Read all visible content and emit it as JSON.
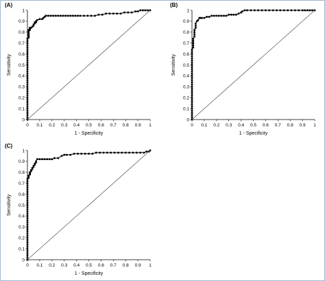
{
  "chart_data": [
    {
      "panel_label": "(A)",
      "type": "line",
      "xlabel": "1 - Specificity",
      "ylabel": "Sensitivity",
      "xlim": [
        0,
        1
      ],
      "ylim": [
        0,
        1
      ],
      "x_ticks": [
        "0",
        "0.1",
        "0.2",
        "0.3",
        "0.4",
        "0.5",
        "0.6",
        "0.7",
        "0.8",
        "0.9",
        "1"
      ],
      "y_ticks": [
        "0",
        "0.1",
        "0.2",
        "0.3",
        "0.4",
        "0.5",
        "0.6",
        "0.7",
        "0.8",
        "0.9",
        "1"
      ],
      "series": [
        {
          "style": "roc-markers",
          "x": [
            0,
            0,
            0,
            0,
            0,
            0,
            0,
            0,
            0,
            0,
            0,
            0,
            0,
            0,
            0,
            0,
            0,
            0,
            0,
            0,
            0,
            0,
            0,
            0,
            0,
            0,
            0,
            0,
            0,
            0,
            0,
            0,
            0,
            0,
            0,
            0,
            0,
            0,
            0.01,
            0.01,
            0.01,
            0.01,
            0.01,
            0.01,
            0.01,
            0.01,
            0.02,
            0.02,
            0.02,
            0.03,
            0.04,
            0.05,
            0.05,
            0.06,
            0.06,
            0.07,
            0.07,
            0.08,
            0.1,
            0.12,
            0.13,
            0.14,
            0.15,
            0.15,
            0.17,
            0.19,
            0.21,
            0.23,
            0.25,
            0.27,
            0.29,
            0.31,
            0.33,
            0.35,
            0.37,
            0.39,
            0.41,
            0.43,
            0.46,
            0.49,
            0.52,
            0.55,
            0.58,
            0.61,
            0.64,
            0.67,
            0.7,
            0.73,
            0.76,
            0.79,
            0.82,
            0.85,
            0.88,
            0.9,
            0.92,
            0.94,
            0.96,
            0.98,
            1
          ],
          "y": [
            0,
            0.02,
            0.04,
            0.06,
            0.08,
            0.1,
            0.12,
            0.14,
            0.16,
            0.18,
            0.2,
            0.22,
            0.24,
            0.26,
            0.28,
            0.3,
            0.32,
            0.34,
            0.36,
            0.38,
            0.4,
            0.42,
            0.44,
            0.46,
            0.48,
            0.5,
            0.52,
            0.54,
            0.56,
            0.58,
            0.6,
            0.62,
            0.64,
            0.66,
            0.68,
            0.7,
            0.72,
            0.74,
            0.75,
            0.76,
            0.77,
            0.78,
            0.79,
            0.8,
            0.81,
            0.82,
            0.82,
            0.83,
            0.84,
            0.84,
            0.85,
            0.86,
            0.87,
            0.88,
            0.89,
            0.89,
            0.9,
            0.91,
            0.92,
            0.92,
            0.93,
            0.94,
            0.95,
            0.95,
            0.95,
            0.95,
            0.95,
            0.95,
            0.95,
            0.95,
            0.95,
            0.95,
            0.95,
            0.95,
            0.95,
            0.95,
            0.95,
            0.95,
            0.95,
            0.95,
            0.95,
            0.95,
            0.96,
            0.96,
            0.97,
            0.97,
            0.97,
            0.97,
            0.97,
            0.98,
            0.98,
            0.98,
            0.99,
            0.99,
            1,
            1,
            1,
            1,
            1
          ]
        },
        {
          "style": "reference-diagonal",
          "x": [
            0,
            1
          ],
          "y": [
            0,
            1
          ]
        }
      ]
    },
    {
      "panel_label": "(B)",
      "type": "line",
      "xlabel": "1 - Specificity",
      "ylabel": "Sensitivity",
      "xlim": [
        0,
        1
      ],
      "ylim": [
        0,
        1
      ],
      "x_ticks": [
        "0",
        "0.1",
        "0.2",
        "0.3",
        "0.4",
        "0.5",
        "0.6",
        "0.7",
        "0.8",
        "0.9",
        "1"
      ],
      "y_ticks": [
        "0",
        "0.1",
        "0.2",
        "0.3",
        "0.4",
        "0.5",
        "0.6",
        "0.7",
        "0.8",
        "0.9",
        "1"
      ],
      "series": [
        {
          "style": "roc-markers",
          "x": [
            0,
            0,
            0,
            0,
            0,
            0,
            0,
            0,
            0,
            0,
            0,
            0,
            0,
            0,
            0,
            0,
            0,
            0,
            0,
            0,
            0,
            0,
            0,
            0,
            0,
            0,
            0,
            0,
            0,
            0,
            0,
            0,
            0,
            0.01,
            0.01,
            0.01,
            0.01,
            0.01,
            0.02,
            0.02,
            0.02,
            0.02,
            0.03,
            0.03,
            0.03,
            0.04,
            0.05,
            0.06,
            0.07,
            0.08,
            0.1,
            0.12,
            0.14,
            0.16,
            0.18,
            0.2,
            0.22,
            0.24,
            0.26,
            0.28,
            0.3,
            0.32,
            0.34,
            0.36,
            0.38,
            0.4,
            0.41,
            0.43,
            0.45,
            0.48,
            0.51,
            0.54,
            0.57,
            0.6,
            0.63,
            0.66,
            0.69,
            0.72,
            0.75,
            0.78,
            0.81,
            0.84,
            0.87,
            0.9,
            0.92,
            0.94,
            0.96,
            0.98,
            1
          ],
          "y": [
            0,
            0.02,
            0.04,
            0.06,
            0.08,
            0.1,
            0.12,
            0.14,
            0.16,
            0.18,
            0.2,
            0.22,
            0.24,
            0.26,
            0.28,
            0.3,
            0.32,
            0.34,
            0.36,
            0.38,
            0.4,
            0.42,
            0.44,
            0.46,
            0.48,
            0.5,
            0.52,
            0.54,
            0.56,
            0.58,
            0.6,
            0.62,
            0.64,
            0.66,
            0.68,
            0.7,
            0.72,
            0.74,
            0.76,
            0.78,
            0.8,
            0.82,
            0.84,
            0.86,
            0.88,
            0.9,
            0.91,
            0.93,
            0.93,
            0.93,
            0.93,
            0.94,
            0.94,
            0.95,
            0.95,
            0.95,
            0.95,
            0.95,
            0.95,
            0.95,
            0.96,
            0.96,
            0.96,
            0.96,
            0.97,
            0.98,
            0.99,
            1,
            1,
            1,
            1,
            1,
            1,
            1,
            1,
            1,
            1,
            1,
            1,
            1,
            1,
            1,
            1,
            1,
            1,
            1,
            1,
            1,
            1
          ]
        },
        {
          "style": "reference-diagonal",
          "x": [
            0,
            1
          ],
          "y": [
            0,
            1
          ]
        }
      ]
    },
    {
      "panel_label": "(C)",
      "type": "line",
      "xlabel": "1 - Specificity",
      "ylabel": "Sensitivity",
      "xlim": [
        0,
        1
      ],
      "ylim": [
        0,
        1
      ],
      "x_ticks": [
        "0",
        "0.1",
        "0.2",
        "0.3",
        "0.4",
        "0.5",
        "0.6",
        "0.7",
        "0.8",
        "0.9",
        "1"
      ],
      "y_ticks": [
        "0",
        "0.1",
        "0.2",
        "0.3",
        "0.4",
        "0.5",
        "0.6",
        "0.7",
        "0.8",
        "0.9",
        "1"
      ],
      "series": [
        {
          "style": "roc-markers",
          "x": [
            0,
            0,
            0,
            0,
            0,
            0,
            0,
            0,
            0,
            0,
            0,
            0,
            0,
            0,
            0,
            0,
            0,
            0,
            0,
            0,
            0,
            0,
            0,
            0,
            0,
            0,
            0,
            0,
            0,
            0,
            0,
            0,
            0,
            0,
            0,
            0,
            0,
            0,
            0.01,
            0.01,
            0.01,
            0.02,
            0.02,
            0.02,
            0.03,
            0.03,
            0.04,
            0.04,
            0.05,
            0.05,
            0.06,
            0.06,
            0.07,
            0.07,
            0.08,
            0.1,
            0.12,
            0.14,
            0.16,
            0.18,
            0.2,
            0.22,
            0.25,
            0.28,
            0.3,
            0.32,
            0.35,
            0.38,
            0.41,
            0.44,
            0.47,
            0.5,
            0.53,
            0.56,
            0.59,
            0.62,
            0.65,
            0.68,
            0.71,
            0.74,
            0.77,
            0.8,
            0.83,
            0.86,
            0.89,
            0.92,
            0.95,
            0.97,
            0.99,
            1
          ],
          "y": [
            0,
            0.02,
            0.04,
            0.06,
            0.08,
            0.1,
            0.12,
            0.14,
            0.16,
            0.18,
            0.2,
            0.22,
            0.24,
            0.26,
            0.28,
            0.3,
            0.32,
            0.34,
            0.36,
            0.38,
            0.4,
            0.42,
            0.44,
            0.46,
            0.48,
            0.5,
            0.52,
            0.54,
            0.56,
            0.58,
            0.6,
            0.62,
            0.64,
            0.66,
            0.68,
            0.7,
            0.72,
            0.74,
            0.75,
            0.76,
            0.77,
            0.78,
            0.79,
            0.8,
            0.81,
            0.82,
            0.83,
            0.84,
            0.85,
            0.86,
            0.87,
            0.88,
            0.89,
            0.9,
            0.92,
            0.92,
            0.92,
            0.92,
            0.92,
            0.92,
            0.92,
            0.93,
            0.93,
            0.95,
            0.96,
            0.96,
            0.96,
            0.97,
            0.97,
            0.97,
            0.97,
            0.97,
            0.97,
            0.98,
            0.98,
            0.98,
            0.98,
            0.98,
            0.98,
            0.98,
            0.98,
            0.98,
            0.98,
            0.98,
            0.98,
            0.98,
            0.98,
            0.99,
            0.99,
            1
          ]
        },
        {
          "style": "reference-diagonal",
          "x": [
            0,
            1
          ],
          "y": [
            0,
            1
          ]
        }
      ]
    }
  ],
  "style": {
    "curve_color": "#000000",
    "diagonal_color": "#4d4d4d",
    "frame_color": "#9fb7d3"
  }
}
